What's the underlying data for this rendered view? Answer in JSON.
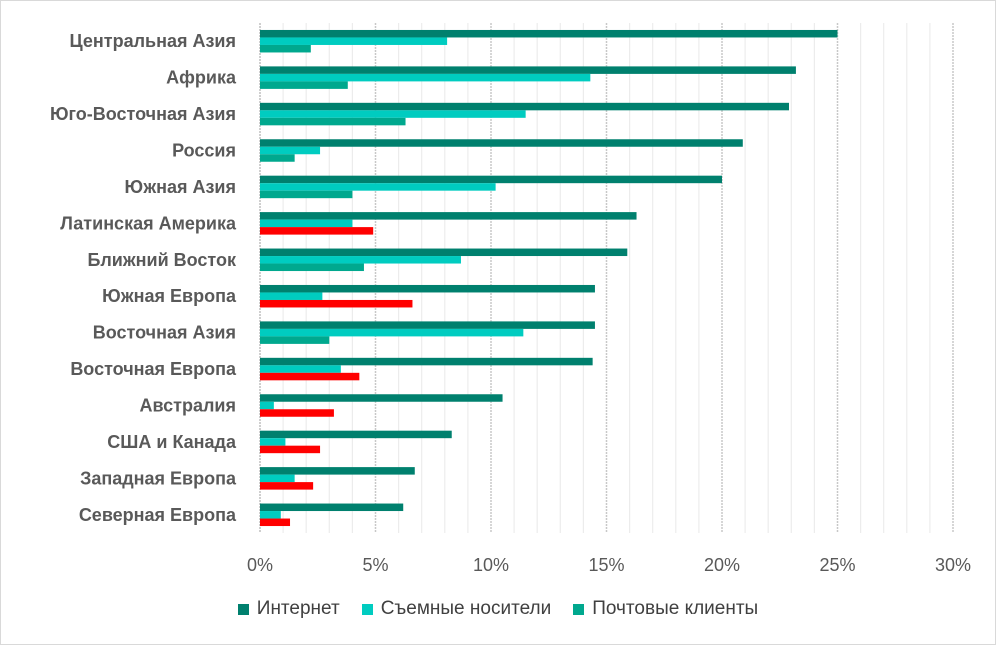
{
  "chart_data": {
    "type": "bar",
    "orientation": "horizontal",
    "categories": [
      "Центральная Азия",
      "Африка",
      "Юго-Восточная Азия",
      "Россия",
      "Южная Азия",
      "Латинская Америка",
      "Ближний Восток",
      "Южная Европа",
      "Восточная Азия",
      "Восточная Европа",
      "Австралия",
      "США и Канада",
      "Западная Европа",
      "Северная Европа"
    ],
    "series": [
      {
        "name": "Интернет",
        "color": "#00806E",
        "values": [
          25.0,
          23.2,
          22.9,
          20.9,
          20.0,
          16.3,
          15.9,
          14.5,
          14.5,
          14.4,
          10.5,
          8.3,
          6.7,
          6.2
        ]
      },
      {
        "name": "Съемные носители",
        "color": "#00CCC0",
        "values": [
          8.1,
          14.3,
          11.5,
          2.6,
          10.2,
          4.0,
          8.7,
          2.7,
          11.4,
          3.5,
          0.6,
          1.1,
          1.5,
          0.9
        ]
      },
      {
        "name": "Почтовые клиенты",
        "color": "#00A88E",
        "highlight_color": "#FF0000",
        "highlighted": [
          "Латинская Америка",
          "Южная Европа",
          "Восточная Европа",
          "Австралия",
          "США и Канада",
          "Западная Европа",
          "Северная Европа"
        ],
        "values": [
          2.2,
          3.8,
          6.3,
          1.5,
          4.0,
          4.9,
          4.5,
          6.6,
          3.0,
          4.3,
          3.2,
          2.6,
          2.3,
          1.3
        ]
      }
    ],
    "xlim": [
      0,
      30
    ],
    "xticks": [
      "0%",
      "5%",
      "10%",
      "15%",
      "20%",
      "25%",
      "30%"
    ],
    "xtick_values": [
      0,
      5,
      10,
      15,
      20,
      25,
      30
    ],
    "grid": true,
    "legend_position": "bottom",
    "title": "",
    "xlabel": "",
    "ylabel": ""
  }
}
